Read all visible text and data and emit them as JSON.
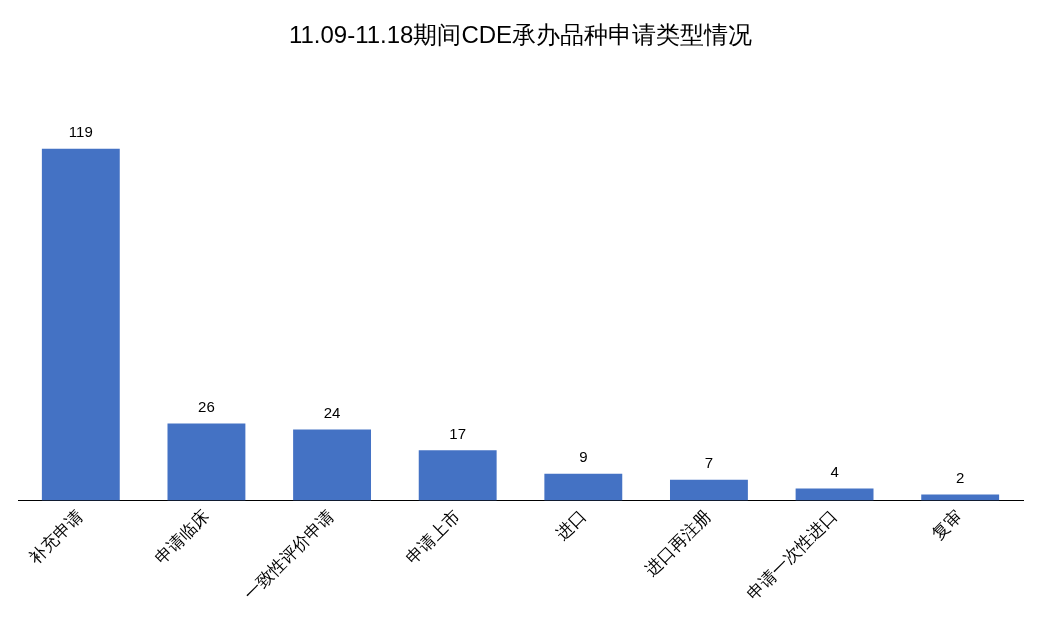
{
  "chart_data": {
    "type": "bar",
    "title": "11.09-11.18期间CDE承办品种申请类型情况",
    "categories": [
      "补充申请",
      "申请临床",
      "一致性评价申请",
      "申请上市",
      "进口",
      "进口再注册",
      "申请一次性进口",
      "复审"
    ],
    "values": [
      119,
      26,
      24,
      17,
      9,
      7,
      4,
      2
    ],
    "color": "#4472c4",
    "data_labels": true,
    "grid": false,
    "legend": false
  }
}
